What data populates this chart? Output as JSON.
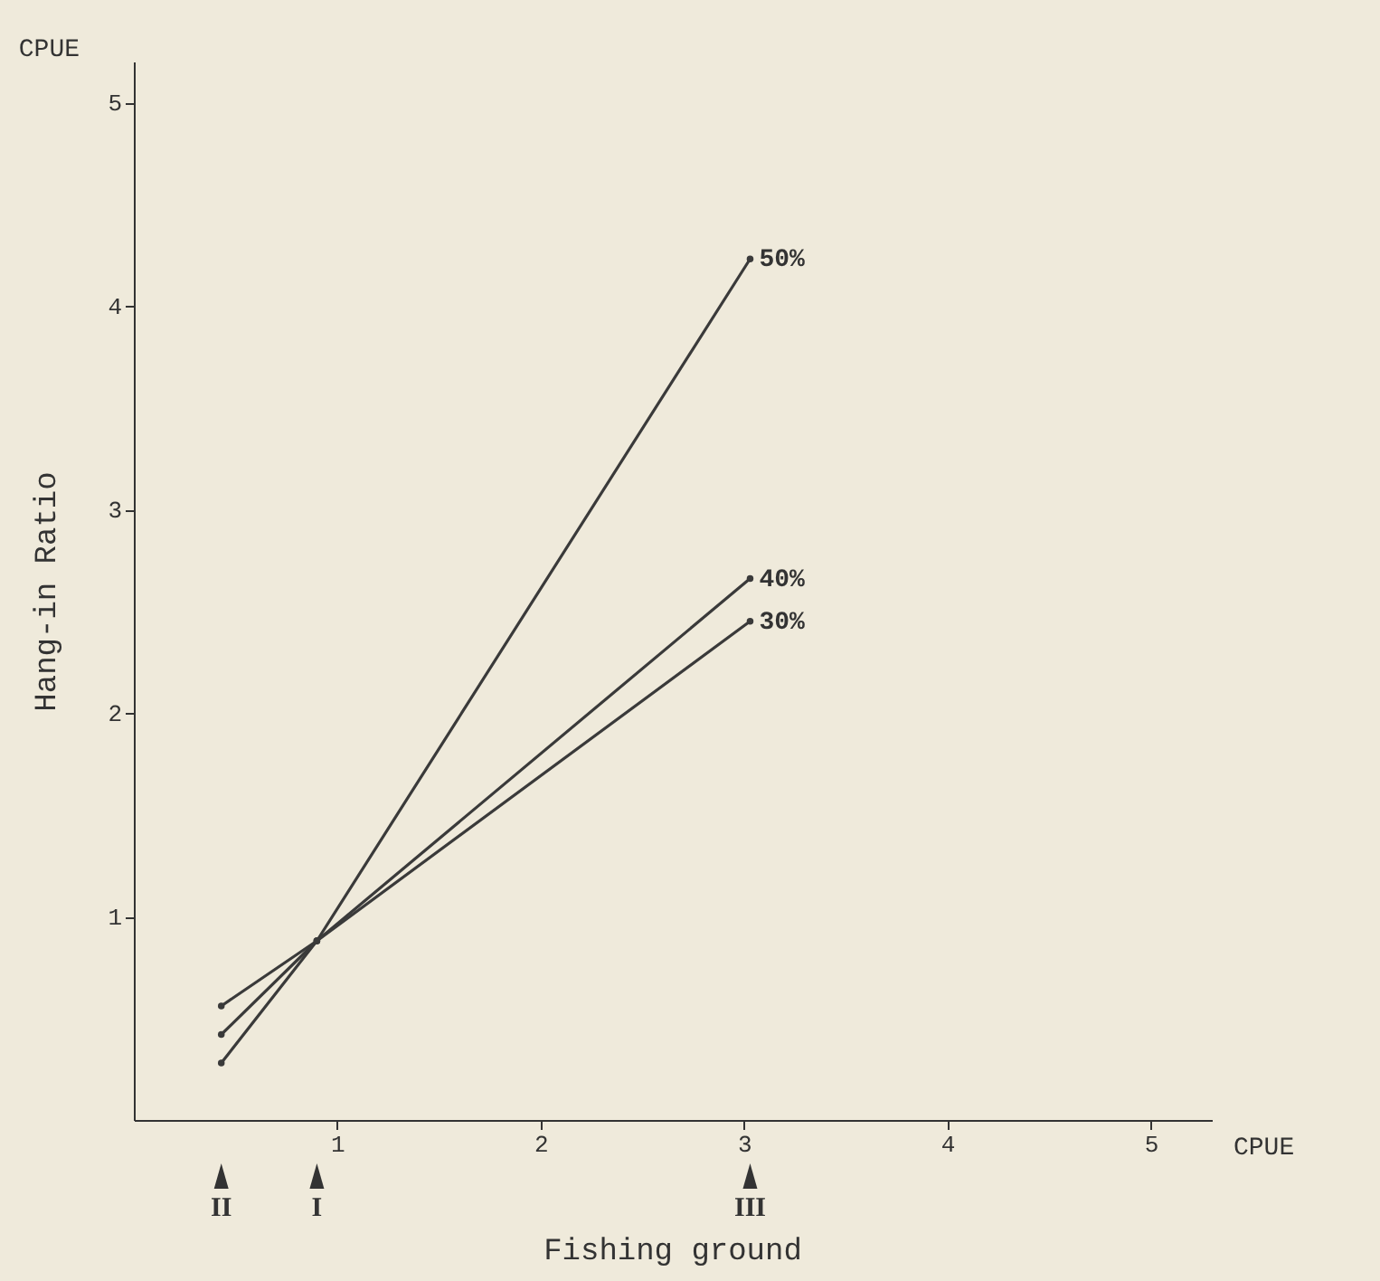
{
  "chart_data": {
    "type": "line",
    "xlabel": "Fishing ground",
    "ylabel": "Hang-in Ratio",
    "x": [
      0.43,
      0.9,
      3.03
    ],
    "series": [
      {
        "name": "50%",
        "color": "#3a3a3a",
        "values": [
          0.28,
          0.88,
          4.23
        ]
      },
      {
        "name": "40%",
        "color": "#3a3a3a",
        "values": [
          0.42,
          0.88,
          2.66
        ]
      },
      {
        "name": "30%",
        "color": "#3a3a3a",
        "values": [
          0.56,
          0.88,
          2.45
        ]
      }
    ],
    "xlim": [
      0,
      5.3
    ],
    "ylim": [
      0,
      5.2
    ],
    "xticks": [
      1,
      2,
      3,
      4,
      5
    ],
    "yticks": [
      1,
      2,
      3,
      4,
      5
    ],
    "annotations": [
      "CPUE",
      "CPUE",
      "II",
      "I",
      "III"
    ],
    "marker": "circle",
    "line_style": "solid",
    "grid": false,
    "legend": false
  }
}
